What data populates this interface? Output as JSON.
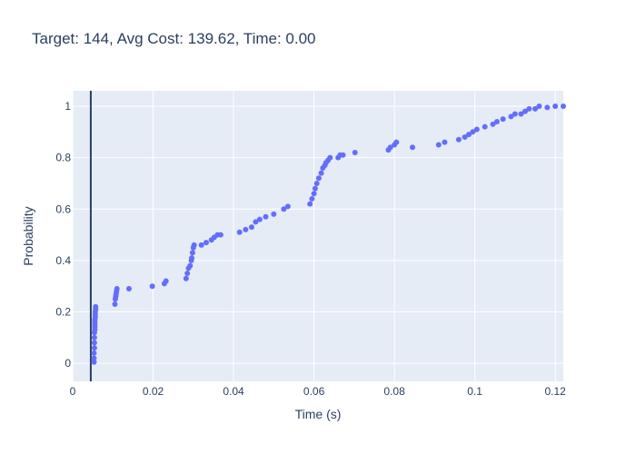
{
  "chart_data": {
    "type": "scatter",
    "title": "Target: 144, Avg Cost: 139.62, Time: 0.00",
    "xlabel": "Time (s)",
    "ylabel": "Probability",
    "xlim": [
      0,
      0.122
    ],
    "ylim": [
      -0.07,
      1.06
    ],
    "xticks": [
      0,
      0.02,
      0.04,
      0.06,
      0.08,
      0.1,
      0.12
    ],
    "xtick_labels": [
      "0",
      "0.02",
      "0.04",
      "0.06",
      "0.08",
      "0.1",
      "0.12"
    ],
    "yticks": [
      0,
      0.2,
      0.4,
      0.6,
      0.8,
      1
    ],
    "ytick_labels": [
      "0",
      "0.2",
      "0.4",
      "0.6",
      "0.8",
      "1"
    ],
    "grid": true,
    "vertical_line_x": 0.0045,
    "colors": {
      "points": "#636efa",
      "vline": "#2a3f5f",
      "plot_bg": "#e5ecf6",
      "grid": "#ffffff"
    },
    "x": [
      0.0053,
      0.0053,
      0.0053,
      0.0054,
      0.0054,
      0.0054,
      0.0054,
      0.0055,
      0.0055,
      0.0055,
      0.0055,
      0.0055,
      0.0056,
      0.0056,
      0.0056,
      0.0057,
      0.0057,
      0.0105,
      0.0106,
      0.0107,
      0.0108,
      0.0109,
      0.011,
      0.014,
      0.0198,
      0.0228,
      0.0232,
      0.0282,
      0.0285,
      0.0288,
      0.0292,
      0.0295,
      0.0296,
      0.0298,
      0.03,
      0.0302,
      0.032,
      0.0332,
      0.0345,
      0.0352,
      0.036,
      0.0368,
      0.0415,
      0.043,
      0.0445,
      0.0455,
      0.0465,
      0.048,
      0.05,
      0.0525,
      0.0535,
      0.059,
      0.0595,
      0.06,
      0.0603,
      0.0607,
      0.0612,
      0.0618,
      0.0622,
      0.0627,
      0.063,
      0.0635,
      0.064,
      0.066,
      0.0665,
      0.0672,
      0.0702,
      0.0785,
      0.079,
      0.08,
      0.0805,
      0.0845,
      0.091,
      0.0925,
      0.096,
      0.0975,
      0.0985,
      0.0995,
      0.1005,
      0.1025,
      0.1045,
      0.1055,
      0.107,
      0.109,
      0.11,
      0.1115,
      0.1125,
      0.1135,
      0.115,
      0.116,
      0.118,
      0.12,
      0.122
    ],
    "y": [
      0.005,
      0.02,
      0.04,
      0.06,
      0.08,
      0.1,
      0.12,
      0.13,
      0.14,
      0.15,
      0.16,
      0.17,
      0.18,
      0.19,
      0.2,
      0.21,
      0.22,
      0.23,
      0.25,
      0.26,
      0.27,
      0.28,
      0.29,
      0.29,
      0.3,
      0.31,
      0.32,
      0.33,
      0.35,
      0.37,
      0.38,
      0.4,
      0.41,
      0.43,
      0.45,
      0.46,
      0.46,
      0.47,
      0.48,
      0.49,
      0.5,
      0.5,
      0.51,
      0.52,
      0.53,
      0.55,
      0.56,
      0.57,
      0.58,
      0.6,
      0.61,
      0.62,
      0.64,
      0.66,
      0.68,
      0.7,
      0.72,
      0.74,
      0.76,
      0.77,
      0.78,
      0.79,
      0.8,
      0.8,
      0.81,
      0.81,
      0.82,
      0.83,
      0.84,
      0.85,
      0.86,
      0.84,
      0.85,
      0.86,
      0.87,
      0.88,
      0.89,
      0.9,
      0.91,
      0.92,
      0.93,
      0.94,
      0.95,
      0.96,
      0.97,
      0.97,
      0.98,
      0.99,
      0.99,
      1.0,
      0.995,
      1.0,
      1.0
    ]
  }
}
